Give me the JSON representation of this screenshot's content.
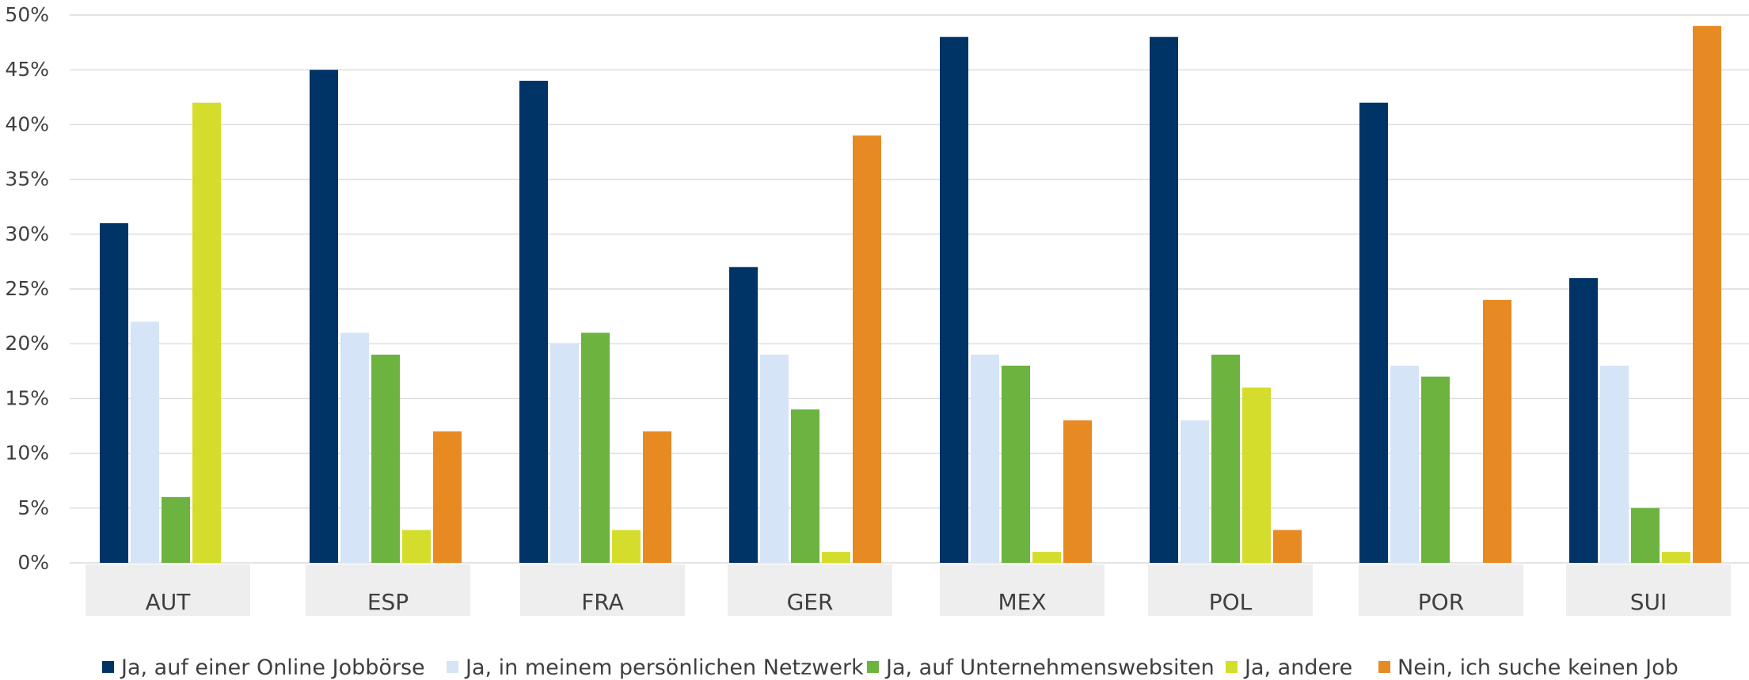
{
  "chart_data": {
    "type": "bar",
    "categories": [
      "AUT",
      "ESP",
      "FRA",
      "GER",
      "MEX",
      "POL",
      "POR",
      "SUI"
    ],
    "series": [
      {
        "name": "Ja, auf einer Online Jobbörse",
        "color": "#003366",
        "values": [
          31,
          45,
          44,
          27,
          48,
          48,
          42,
          26
        ]
      },
      {
        "name": "Ja, in meinem persönlichen Netzwerk",
        "color": "#d5e4f6",
        "values": [
          22,
          21,
          20,
          19,
          19,
          13,
          18,
          18
        ]
      },
      {
        "name": "Ja, auf Unternehmenswebsiten",
        "color": "#6cb33f",
        "values": [
          6,
          19,
          21,
          14,
          18,
          19,
          17,
          5
        ]
      },
      {
        "name": "Ja, andere",
        "color": "#d4dd2b",
        "values": [
          42,
          3,
          3,
          1,
          1,
          16,
          0,
          1
        ]
      },
      {
        "name": "Nein, ich suche keinen Job",
        "color": "#e88a22",
        "values": [
          0,
          12,
          12,
          39,
          13,
          3,
          24,
          49
        ]
      }
    ],
    "y_tick_values": [
      0,
      5,
      10,
      15,
      20,
      25,
      30,
      35,
      40,
      45,
      50
    ],
    "y_tick_labels": [
      "0%",
      "5%",
      "10%",
      "15%",
      "20%",
      "25%",
      "30%",
      "35%",
      "40%",
      "45%",
      "50%"
    ],
    "ylim": [
      0,
      50
    ],
    "grid": true,
    "legend_position": "bottom",
    "title": "",
    "xlabel": "",
    "ylabel": ""
  }
}
